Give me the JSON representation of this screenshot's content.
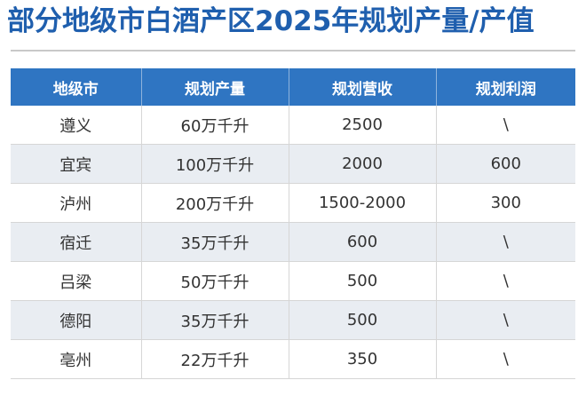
{
  "title": "部分地级市白酒产区2025年规划产量/产值",
  "table": {
    "headers": [
      "地级市",
      "规划产量",
      "规划营收",
      "规划利润"
    ],
    "rows": [
      [
        "遵义",
        "60万千升",
        "2500",
        "\\"
      ],
      [
        "宜宾",
        "100万千升",
        "2000",
        "600"
      ],
      [
        "泸州",
        "200万千升",
        "1500-2000",
        "300"
      ],
      [
        "宿迁",
        "35万千升",
        "600",
        "\\"
      ],
      [
        "吕梁",
        "50万千升",
        "500",
        "\\"
      ],
      [
        "德阳",
        "35万千升",
        "500",
        "\\"
      ],
      [
        "亳州",
        "22万千升",
        "350",
        "\\"
      ]
    ]
  }
}
